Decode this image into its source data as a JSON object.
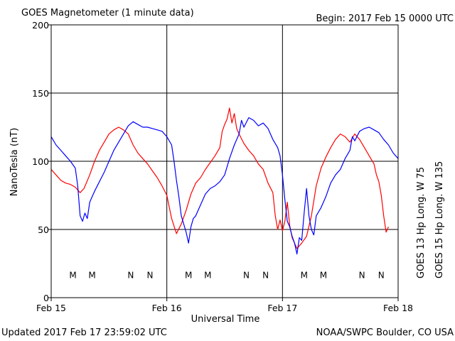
{
  "chart_data": {
    "type": "line",
    "title": "GOES Magnetometer (1 minute data)",
    "begin_label": "Begin:  2017 Feb 15 0000 UTC",
    "xlabel": "Universal Time",
    "ylabel": "NanoTesla (nT)",
    "ylim": [
      0,
      200
    ],
    "yticks": [
      "0",
      "50",
      "100",
      "150",
      "200"
    ],
    "xlim_hours": [
      0,
      72
    ],
    "xticks": [
      "Feb 15",
      "Feb 16",
      "Feb 17",
      "Feb 18"
    ],
    "grid": true,
    "footer_left": "Updated 2017 Feb 17 23:59:02 UTC",
    "footer_right": "NOAA/SWPC Boulder, CO USA",
    "colors": {
      "goes13": "#ff0000",
      "goes15": "#0000ff",
      "axis": "#000000"
    },
    "series": [
      {
        "name": "GOES 13 Hp  Long. W 75",
        "color": "#ff0000",
        "points": [
          [
            0,
            94
          ],
          [
            1,
            90
          ],
          [
            2,
            86
          ],
          [
            3,
            84
          ],
          [
            4,
            83
          ],
          [
            5,
            81
          ],
          [
            6,
            77
          ],
          [
            6.8,
            80
          ],
          [
            8,
            90
          ],
          [
            9,
            100
          ],
          [
            10,
            108
          ],
          [
            11,
            114
          ],
          [
            12,
            120
          ],
          [
            13,
            123
          ],
          [
            14,
            125
          ],
          [
            15,
            123
          ],
          [
            16,
            120
          ],
          [
            17,
            112
          ],
          [
            18,
            106
          ],
          [
            19,
            102
          ],
          [
            20,
            98
          ],
          [
            21,
            93
          ],
          [
            22,
            88
          ],
          [
            23,
            82
          ],
          [
            24,
            75
          ],
          [
            25,
            58
          ],
          [
            26,
            47
          ],
          [
            27,
            54
          ],
          [
            28,
            64
          ],
          [
            29,
            76
          ],
          [
            30,
            84
          ],
          [
            31,
            88
          ],
          [
            32,
            94
          ],
          [
            33,
            99
          ],
          [
            34,
            104
          ],
          [
            35,
            110
          ],
          [
            35.5,
            122
          ],
          [
            36,
            127
          ],
          [
            36.5,
            131
          ],
          [
            37,
            139
          ],
          [
            37.5,
            128
          ],
          [
            38,
            135
          ],
          [
            38.5,
            124
          ],
          [
            39,
            120
          ],
          [
            40,
            113
          ],
          [
            41,
            108
          ],
          [
            42,
            104
          ],
          [
            43,
            98
          ],
          [
            44,
            94
          ],
          [
            45,
            84
          ],
          [
            46,
            77
          ],
          [
            46.5,
            60
          ],
          [
            47,
            50
          ],
          [
            47.5,
            57
          ],
          [
            48,
            49
          ],
          [
            48.5,
            56
          ],
          [
            49,
            70
          ],
          [
            49.5,
            53
          ],
          [
            50,
            44
          ],
          [
            51,
            36
          ],
          [
            52,
            40
          ],
          [
            53,
            45
          ],
          [
            54,
            60
          ],
          [
            55,
            82
          ],
          [
            56,
            95
          ],
          [
            57,
            103
          ],
          [
            58,
            110
          ],
          [
            59,
            116
          ],
          [
            60,
            120
          ],
          [
            61,
            118
          ],
          [
            62,
            114
          ],
          [
            63,
            120
          ],
          [
            64,
            116
          ],
          [
            65,
            110
          ],
          [
            66,
            104
          ],
          [
            67,
            98
          ],
          [
            67.5,
            90
          ],
          [
            68,
            85
          ],
          [
            68.5,
            75
          ],
          [
            69,
            60
          ],
          [
            69.5,
            48
          ],
          [
            70,
            52
          ]
        ]
      },
      {
        "name": "GOES 15 Hp  Long. W 135",
        "color": "#0000ff",
        "points": [
          [
            0,
            118
          ],
          [
            1,
            112
          ],
          [
            2,
            108
          ],
          [
            3,
            104
          ],
          [
            4,
            100
          ],
          [
            5,
            95
          ],
          [
            5.5,
            82
          ],
          [
            6,
            60
          ],
          [
            6.5,
            56
          ],
          [
            7,
            62
          ],
          [
            7.5,
            58
          ],
          [
            8,
            70
          ],
          [
            9,
            78
          ],
          [
            10,
            85
          ],
          [
            11,
            92
          ],
          [
            12,
            100
          ],
          [
            13,
            108
          ],
          [
            14,
            114
          ],
          [
            15,
            120
          ],
          [
            16,
            126
          ],
          [
            17,
            129
          ],
          [
            18,
            127
          ],
          [
            19,
            125
          ],
          [
            20,
            125
          ],
          [
            21,
            124
          ],
          [
            22,
            123
          ],
          [
            23,
            122
          ],
          [
            24,
            118
          ],
          [
            25,
            112
          ],
          [
            25.5,
            100
          ],
          [
            26,
            86
          ],
          [
            26.5,
            74
          ],
          [
            27,
            60
          ],
          [
            27.5,
            54
          ],
          [
            28,
            48
          ],
          [
            28.5,
            40
          ],
          [
            29,
            52
          ],
          [
            29.5,
            58
          ],
          [
            30,
            60
          ],
          [
            31,
            68
          ],
          [
            32,
            76
          ],
          [
            33,
            80
          ],
          [
            34,
            82
          ],
          [
            35,
            85
          ],
          [
            36,
            90
          ],
          [
            37,
            102
          ],
          [
            38,
            112
          ],
          [
            39,
            120
          ],
          [
            39.5,
            130
          ],
          [
            40,
            125
          ],
          [
            41,
            132
          ],
          [
            42,
            130
          ],
          [
            43,
            126
          ],
          [
            44,
            128
          ],
          [
            45,
            124
          ],
          [
            46,
            116
          ],
          [
            47,
            110
          ],
          [
            47.5,
            104
          ],
          [
            48,
            90
          ],
          [
            48.5,
            72
          ],
          [
            49,
            56
          ],
          [
            49.5,
            52
          ],
          [
            50,
            45
          ],
          [
            50.5,
            40
          ],
          [
            51,
            32
          ],
          [
            51.5,
            44
          ],
          [
            52,
            42
          ],
          [
            52.5,
            62
          ],
          [
            53,
            80
          ],
          [
            53.5,
            60
          ],
          [
            54,
            50
          ],
          [
            54.5,
            46
          ],
          [
            55,
            60
          ],
          [
            56,
            66
          ],
          [
            57,
            74
          ],
          [
            58,
            84
          ],
          [
            59,
            90
          ],
          [
            60,
            94
          ],
          [
            61,
            102
          ],
          [
            62,
            108
          ],
          [
            62.5,
            118
          ],
          [
            63,
            115
          ],
          [
            64,
            122
          ],
          [
            65,
            124
          ],
          [
            66,
            125
          ],
          [
            67,
            123
          ],
          [
            68,
            121
          ],
          [
            69,
            116
          ],
          [
            70,
            112
          ],
          [
            71,
            106
          ],
          [
            72,
            102
          ]
        ]
      }
    ],
    "annotations": [
      {
        "text": "M",
        "hour": 4.5,
        "series": 0
      },
      {
        "text": "M",
        "hour": 8.5,
        "series": 1
      },
      {
        "text": "N",
        "hour": 16.5,
        "series": 0
      },
      {
        "text": "N",
        "hour": 20.5,
        "series": 1
      },
      {
        "text": "M",
        "hour": 28.5,
        "series": 0
      },
      {
        "text": "M",
        "hour": 32.5,
        "series": 1
      },
      {
        "text": "N",
        "hour": 40.5,
        "series": 0
      },
      {
        "text": "N",
        "hour": 44.5,
        "series": 1
      },
      {
        "text": "M",
        "hour": 52.5,
        "series": 0
      },
      {
        "text": "M",
        "hour": 56.5,
        "series": 1
      },
      {
        "text": "N",
        "hour": 64.5,
        "series": 0
      },
      {
        "text": "N",
        "hour": 68.5,
        "series": 1
      }
    ],
    "annotation_level_nT": 17
  }
}
